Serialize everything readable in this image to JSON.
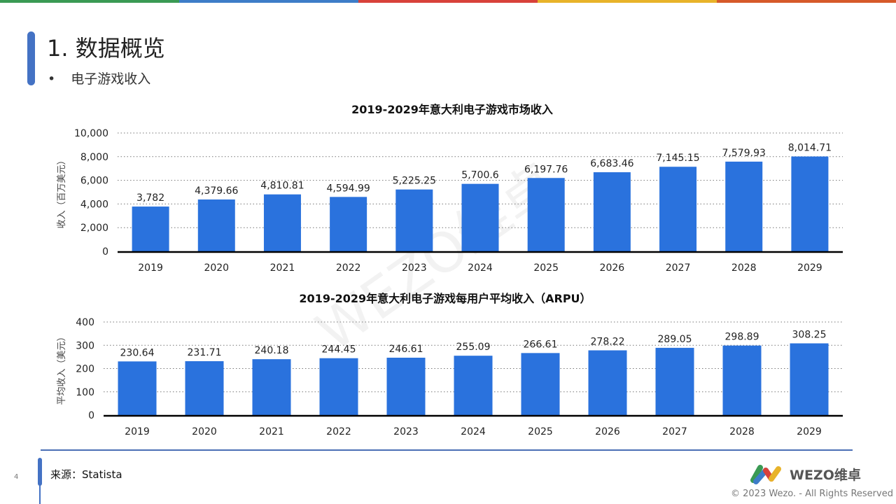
{
  "colors": {
    "bar": "#2a72dd",
    "topbar": [
      "#3a9a54",
      "#3d7dc8",
      "#d8413a",
      "#e8b32a",
      "#d65a2a"
    ]
  },
  "header": {
    "title": "1. 数据概览",
    "bullet": "•",
    "subtitle": "电子游戏收入"
  },
  "watermark": "WEZO维卓",
  "chart_data": [
    {
      "type": "bar",
      "title": "2019-2029年意大利电子游戏市场收入",
      "ylabel": "收入（百万美元）",
      "xlabel": "",
      "ylim": [
        0,
        10000
      ],
      "yticks": [
        "0",
        "2,000",
        "4,000",
        "6,000",
        "8,000",
        "10,000"
      ],
      "grid": true,
      "categories": [
        "2019",
        "2020",
        "2021",
        "2022",
        "2023",
        "2024",
        "2025",
        "2026",
        "2027",
        "2028",
        "2029"
      ],
      "values": [
        3782,
        4379.66,
        4810.81,
        4594.99,
        5225.25,
        5700.6,
        6197.76,
        6683.46,
        7145.15,
        7579.93,
        8014.71
      ],
      "labels": [
        "3,782",
        "4,379.66",
        "4,810.81",
        "4,594.99",
        "5,225.25",
        "5,700.6",
        "6,197.76",
        "6,683.46",
        "7,145.15",
        "7,579.93",
        "8,014.71"
      ]
    },
    {
      "type": "bar",
      "title": "2019-2029年意大利电子游戏每用户平均收入（ARPU）",
      "ylabel": "平均收入（美元）",
      "xlabel": "",
      "ylim": [
        0,
        400
      ],
      "yticks": [
        "0",
        "100",
        "200",
        "300",
        "400"
      ],
      "grid": true,
      "categories": [
        "2019",
        "2020",
        "2021",
        "2022",
        "2023",
        "2024",
        "2025",
        "2026",
        "2027",
        "2028",
        "2029"
      ],
      "values": [
        230.64,
        231.71,
        240.18,
        244.45,
        246.61,
        255.09,
        266.61,
        278.22,
        289.05,
        298.89,
        308.25
      ],
      "labels": [
        "230.64",
        "231.71",
        "240.18",
        "244.45",
        "246.61",
        "255.09",
        "266.61",
        "278.22",
        "289.05",
        "298.89",
        "308.25"
      ]
    }
  ],
  "footer": {
    "page": "4",
    "source": "来源：Statista",
    "logo": "WEZO维卓",
    "copyright": "© 2023 Wezo. - All Rights Reserved"
  }
}
